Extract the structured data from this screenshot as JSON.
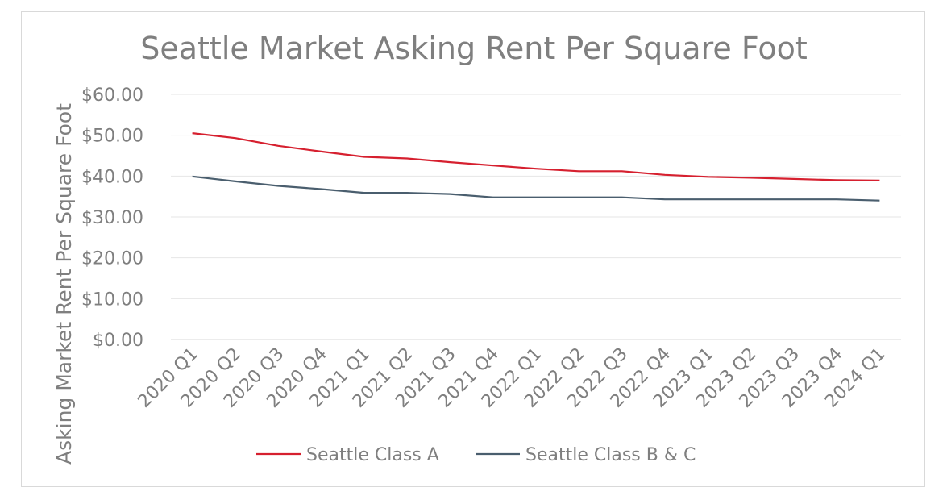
{
  "chart_data": {
    "type": "line",
    "title": "Seattle Market Asking Rent Per Square Foot",
    "xlabel": "",
    "ylabel": "Asking Market Rent Per Square Foot",
    "ylim": [
      0,
      60
    ],
    "y_ticks": [
      "$0.00",
      "$10.00",
      "$20.00",
      "$30.00",
      "$40.00",
      "$50.00",
      "$60.00"
    ],
    "grid": true,
    "legend_position": "bottom",
    "categories": [
      "2020 Q1",
      "2020 Q2",
      "2020 Q3",
      "2020 Q4",
      "2021 Q1",
      "2021 Q2",
      "2021 Q3",
      "2021 Q4",
      "2022 Q1",
      "2022 Q2",
      "2022 Q3",
      "2022 Q4",
      "2023 Q1",
      "2023 Q2",
      "2023 Q3",
      "2023 Q4",
      "2024 Q1"
    ],
    "series": [
      {
        "name": "Seattle Class A",
        "color": "#d6202f",
        "values": [
          50.5,
          49.3,
          47.4,
          46.0,
          44.7,
          44.3,
          43.4,
          42.6,
          41.8,
          41.2,
          41.2,
          40.3,
          39.8,
          39.6,
          39.3,
          39.0,
          38.9
        ]
      },
      {
        "name": "Seattle Class B & C",
        "color": "#4a5e6e",
        "values": [
          39.9,
          38.7,
          37.6,
          36.8,
          35.9,
          35.9,
          35.6,
          34.8,
          34.8,
          34.8,
          34.8,
          34.3,
          34.3,
          34.3,
          34.3,
          34.3,
          34.0
        ]
      }
    ]
  }
}
